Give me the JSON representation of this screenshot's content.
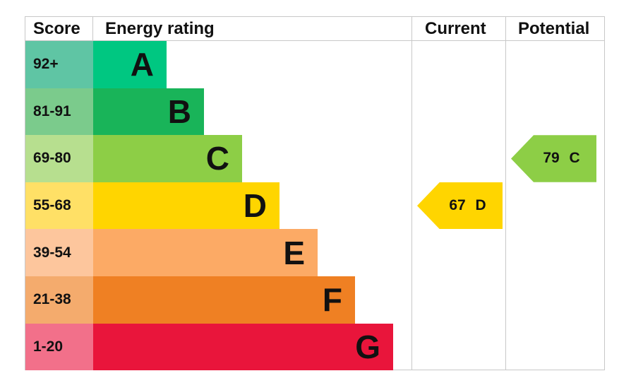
{
  "chart_data": {
    "type": "table",
    "headers": {
      "score": "Score",
      "rating": "Energy rating",
      "current": "Current",
      "potential": "Potential"
    },
    "bands": [
      {
        "score": "92+",
        "letter": "A",
        "color": "#00c781",
        "score_color": "#5fc5a4"
      },
      {
        "score": "81-91",
        "letter": "B",
        "color": "#19b459",
        "score_color": "#7bcb8c"
      },
      {
        "score": "69-80",
        "letter": "C",
        "color": "#8dce46",
        "score_color": "#b7df8f"
      },
      {
        "score": "55-68",
        "letter": "D",
        "color": "#ffd500",
        "score_color": "#ffe066"
      },
      {
        "score": "39-54",
        "letter": "E",
        "color": "#fcaa65",
        "score_color": "#fdc69d"
      },
      {
        "score": "21-38",
        "letter": "F",
        "color": "#ef8023",
        "score_color": "#f4ab6d"
      },
      {
        "score": "1-20",
        "letter": "G",
        "color": "#e9153b",
        "score_color": "#f2708a"
      }
    ],
    "current": {
      "value": 67,
      "letter": "D",
      "label": "67 D"
    },
    "potential": {
      "value": 79,
      "letter": "C",
      "label": "79 C"
    }
  }
}
